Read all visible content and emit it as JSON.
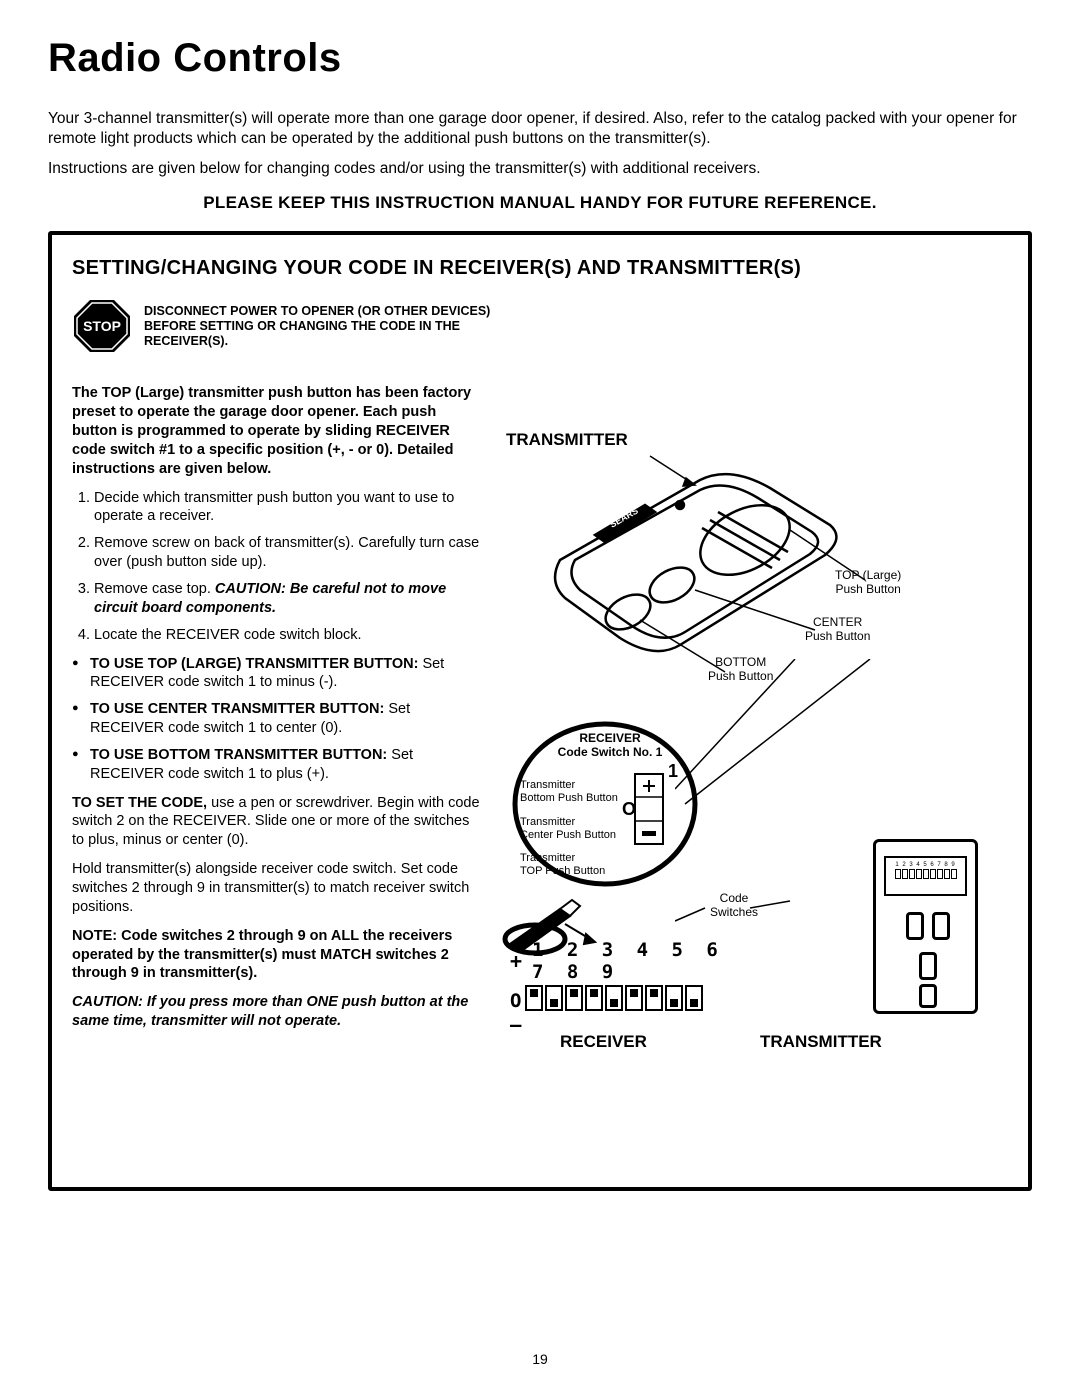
{
  "title": "Radio Controls",
  "intro": {
    "p1": "Your 3-channel transmitter(s) will operate more than one garage door opener, if desired. Also, refer to the catalog packed with your opener for remote light products which can be operated by the additional push buttons on the transmitter(s).",
    "p2": "Instructions are given below for changing codes and/or using the transmitter(s) with additional receivers."
  },
  "keep": "PLEASE KEEP THIS INSTRUCTION MANUAL HANDY FOR FUTURE REFERENCE.",
  "section_heading": "SETTING/CHANGING YOUR CODE IN RECEIVER(S) AND TRANSMITTER(S)",
  "stop": {
    "badge": "STOP",
    "text": "DISCONNECT POWER TO OPENER (OR OTHER DEVICES) BEFORE SETTING OR CHANGING THE CODE IN THE RECEIVER(S)."
  },
  "left": {
    "preset": "The TOP (Large) transmitter push button has been factory preset to operate the garage door opener. Each push button is programmed to operate by sliding RECEIVER code switch #1 to a specific position (+, - or 0). Detailed instructions are given below.",
    "steps": [
      "Decide which transmitter push button you want to use to operate a receiver.",
      "Remove screw on back of transmitter(s). Carefully turn case over (push button side up).",
      "Remove case top.",
      "Locate the RECEIVER code switch block."
    ],
    "step3_caution_label": "CAUTION:",
    "step3_caution": "Be careful not to move circuit board components.",
    "bullets": [
      {
        "lead": "TO USE TOP (LARGE) TRANSMITTER BUTTON:",
        "body": "Set RECEIVER code switch 1 to minus (-)."
      },
      {
        "lead": "TO USE CENTER TRANSMITTER BUTTON:",
        "body": "Set RECEIVER code switch 1 to center (0)."
      },
      {
        "lead": "TO USE BOTTOM TRANSMITTER BUTTON:",
        "body": "Set RECEIVER code switch 1 to plus (+)."
      }
    ],
    "toset_lead": "TO SET THE CODE,",
    "toset_body": "use a pen or screwdriver. Begin with code switch 2 on the RECEIVER. Slide one or more of the switches to plus, minus or center (0).",
    "hold": "Hold transmitter(s) alongside receiver code switch. Set code switches 2 through 9 in transmitter(s) to match receiver switch positions.",
    "note": "NOTE: Code switches 2 through 9 on ALL the receivers operated by the transmitter(s) must MATCH switches 2 through 9 in transmitter(s).",
    "caution2_lead": "CAUTION:",
    "caution2": "If you press more than ONE push button at the same time, transmitter will not operate."
  },
  "diagram": {
    "transmitter_label": "TRANSMITTER",
    "top_btn": "TOP (Large)\nPush Button",
    "center_btn": "CENTER\nPush Button",
    "bottom_btn": "BOTTOM\nPush Button",
    "recv_label": "RECEIVER\nCode Switch No. 1",
    "tx_bottom": "Transmitter\nBottom Push Button",
    "tx_center": "Transmitter\nCenter Push Button",
    "tx_top": "Transmitter\nTOP Push Button",
    "one": "1",
    "o": "O",
    "plusmark": "+",
    "minusmark": "–",
    "code_sw": "Code\nSwitches",
    "receiver_big": "RECEIVER",
    "transmitter_big": "TRANSMITTER",
    "code_numbers": "1 2 3 4 5 6 7 8 9",
    "switch_states": [
      "up",
      "dn",
      "up",
      "up",
      "dn",
      "up",
      "up",
      "dn",
      "dn"
    ],
    "code_plus": "+",
    "code_o": "O",
    "code_minus": "–",
    "sears": "SEARS"
  },
  "page_number": "19",
  "colors": {
    "text": "#000000",
    "bg": "#ffffff",
    "border": "#000000"
  }
}
